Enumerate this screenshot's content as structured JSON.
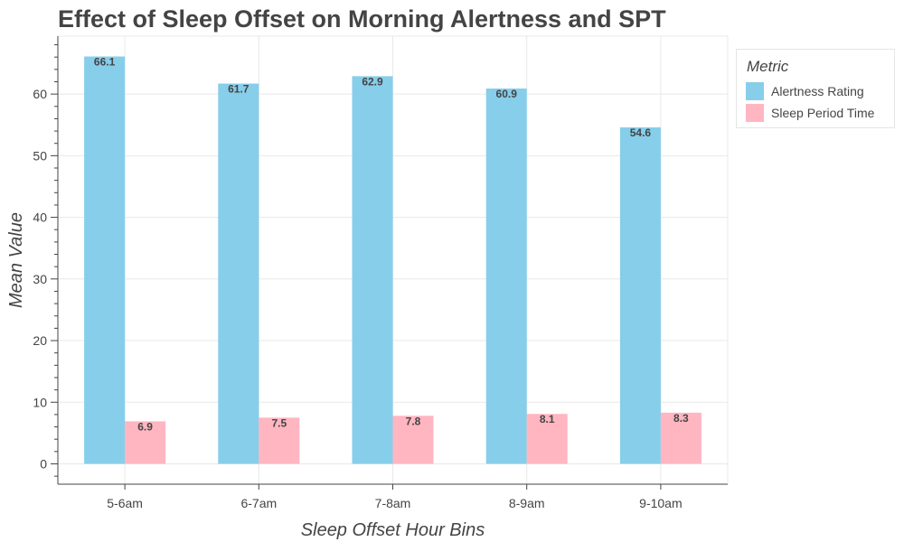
{
  "chart_data": {
    "type": "bar",
    "title": "Effect of Sleep Offset on Morning Alertness and SPT",
    "xlabel": "Sleep Offset Hour Bins",
    "ylabel": "Mean Value",
    "categories": [
      "5-6am",
      "6-7am",
      "7-8am",
      "8-9am",
      "9-10am"
    ],
    "series": [
      {
        "name": "Alertness Rating",
        "values": [
          66.1,
          61.7,
          62.9,
          60.9,
          54.6
        ],
        "color": "#87ceeb"
      },
      {
        "name": "Sleep Period Time",
        "values": [
          6.9,
          7.5,
          7.8,
          8.1,
          8.3
        ],
        "color": "#ffb6c1"
      }
    ],
    "ylim": [
      -3.3,
      69.4
    ],
    "yticks": [
      0,
      10,
      20,
      30,
      40,
      50,
      60
    ],
    "grid": true,
    "legend": {
      "title": "Metric",
      "placement": "top-right outside"
    }
  }
}
